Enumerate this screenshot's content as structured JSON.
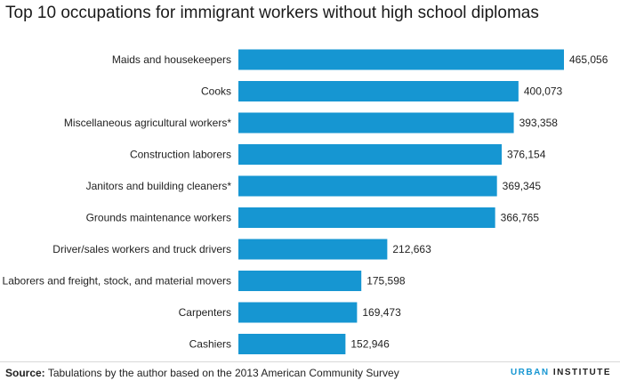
{
  "title": "Top 10 occupations for immigrant workers without high school diplomas",
  "source_label": "Source:",
  "source_text": "Tabulations by the author based on the 2013 American Community Survey",
  "logo": {
    "part1": "URBAN",
    "part2": " INSTITUTE"
  },
  "colors": {
    "bar": "#1696d2"
  },
  "chart_data": {
    "type": "bar",
    "orientation": "horizontal",
    "categories": [
      "Maids and housekeepers",
      "Cooks",
      "Miscellaneous agricultural workers*",
      "Construction laborers",
      "Janitors and building cleaners*",
      "Grounds maintenance workers",
      "Driver/sales workers and truck drivers",
      "Laborers and freight, stock, and material movers",
      "Carpenters",
      "Cashiers"
    ],
    "values": [
      465056,
      400073,
      393358,
      376154,
      369345,
      366765,
      212663,
      175598,
      169473,
      152946
    ],
    "value_labels": [
      "465,056",
      "400,073",
      "393,358",
      "376,154",
      "369,345",
      "366,765",
      "212,663",
      "175,598",
      "169,473",
      "152,946"
    ],
    "title": "Top 10 occupations for immigrant workers without high school diplomas",
    "grid": false,
    "legend": "none"
  }
}
